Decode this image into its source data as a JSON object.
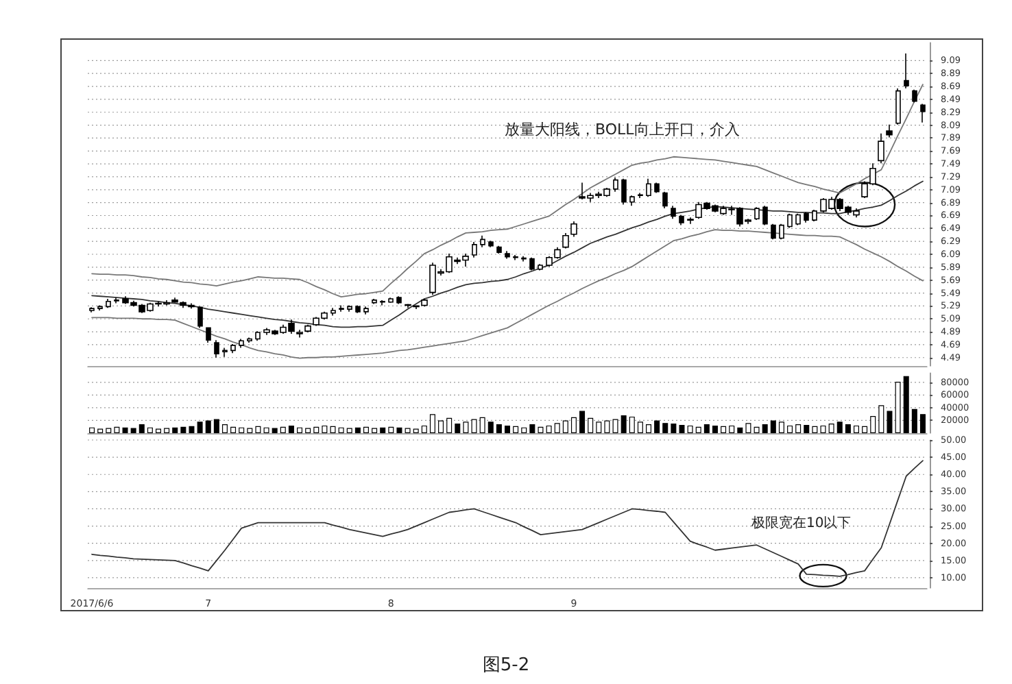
{
  "chart_data": [
    {
      "type": "candlestick",
      "tick_labels": "y",
      "grid": "y",
      "categories": [
        "2017/6/6",
        null,
        null,
        null,
        null,
        null,
        null,
        null,
        null,
        null,
        null,
        null,
        null,
        null,
        "7",
        null,
        null,
        null,
        null,
        null,
        null,
        null,
        null,
        null,
        null,
        null,
        null,
        null,
        null,
        null,
        null,
        null,
        null,
        null,
        null,
        null,
        "8",
        null,
        null,
        null,
        null,
        null,
        null,
        null,
        null,
        null,
        null,
        null,
        null,
        null,
        null,
        null,
        null,
        null,
        null,
        null,
        null,
        null,
        "9",
        null,
        null,
        null,
        null,
        null,
        null,
        null,
        null,
        null,
        null,
        null,
        null,
        null,
        null,
        null,
        null,
        null,
        null,
        null,
        null,
        null,
        null,
        null,
        null,
        null,
        null,
        null,
        null,
        null,
        null,
        null,
        null,
        null,
        null,
        null,
        null,
        null,
        null,
        null,
        null,
        null,
        null
      ],
      "ohlc": [
        [
          5.22,
          5.27,
          5.19,
          5.25
        ],
        [
          5.25,
          5.3,
          5.22,
          5.28
        ],
        [
          5.28,
          5.4,
          5.26,
          5.36
        ],
        [
          5.37,
          5.42,
          5.33,
          5.38
        ],
        [
          5.4,
          5.44,
          5.32,
          5.34
        ],
        [
          5.34,
          5.37,
          5.28,
          5.3
        ],
        [
          5.3,
          5.32,
          5.18,
          5.2
        ],
        [
          5.22,
          5.34,
          5.2,
          5.32
        ],
        [
          5.32,
          5.36,
          5.28,
          5.33
        ],
        [
          5.32,
          5.38,
          5.3,
          5.34
        ],
        [
          5.38,
          5.42,
          5.34,
          5.35
        ],
        [
          5.34,
          5.36,
          5.26,
          5.3
        ],
        [
          5.3,
          5.33,
          5.25,
          5.28
        ],
        [
          5.27,
          5.28,
          4.95,
          4.98
        ],
        [
          4.95,
          4.96,
          4.72,
          4.76
        ],
        [
          4.72,
          4.76,
          4.49,
          4.55
        ],
        [
          4.58,
          4.64,
          4.5,
          4.6
        ],
        [
          4.6,
          4.7,
          4.56,
          4.68
        ],
        [
          4.68,
          4.78,
          4.64,
          4.75
        ],
        [
          4.75,
          4.8,
          4.72,
          4.78
        ],
        [
          4.78,
          4.9,
          4.75,
          4.88
        ],
        [
          4.88,
          4.95,
          4.84,
          4.92
        ],
        [
          4.9,
          4.92,
          4.84,
          4.86
        ],
        [
          4.88,
          5.0,
          4.86,
          4.96
        ],
        [
          5.02,
          5.08,
          4.86,
          4.9
        ],
        [
          4.86,
          4.92,
          4.8,
          4.88
        ],
        [
          4.9,
          5.0,
          4.88,
          4.98
        ],
        [
          5.0,
          5.12,
          4.98,
          5.1
        ],
        [
          5.1,
          5.2,
          5.08,
          5.18
        ],
        [
          5.18,
          5.26,
          5.14,
          5.22
        ],
        [
          5.24,
          5.3,
          5.2,
          5.25
        ],
        [
          5.24,
          5.3,
          5.2,
          5.28
        ],
        [
          5.28,
          5.3,
          5.18,
          5.2
        ],
        [
          5.2,
          5.28,
          5.16,
          5.25
        ],
        [
          5.34,
          5.4,
          5.32,
          5.38
        ],
        [
          5.36,
          5.38,
          5.3,
          5.35
        ],
        [
          5.35,
          5.42,
          5.34,
          5.4
        ],
        [
          5.42,
          5.44,
          5.32,
          5.34
        ],
        [
          5.3,
          5.32,
          5.26,
          5.31
        ],
        [
          5.28,
          5.3,
          5.24,
          5.29
        ],
        [
          5.3,
          5.4,
          5.28,
          5.38
        ],
        [
          5.5,
          5.96,
          5.46,
          5.92
        ],
        [
          5.8,
          5.86,
          5.76,
          5.82
        ],
        [
          5.82,
          6.1,
          5.8,
          6.05
        ],
        [
          6.0,
          6.04,
          5.94,
          5.98
        ],
        [
          6.0,
          6.1,
          5.9,
          6.06
        ],
        [
          6.08,
          6.28,
          6.04,
          6.24
        ],
        [
          6.24,
          6.38,
          6.2,
          6.32
        ],
        [
          6.28,
          6.3,
          6.2,
          6.22
        ],
        [
          6.2,
          6.22,
          6.1,
          6.12
        ],
        [
          6.1,
          6.14,
          6.02,
          6.05
        ],
        [
          6.04,
          6.08,
          6.0,
          6.05
        ],
        [
          6.02,
          6.06,
          5.98,
          6.03
        ],
        [
          6.02,
          6.04,
          5.84,
          5.86
        ],
        [
          5.86,
          5.94,
          5.84,
          5.92
        ],
        [
          5.92,
          6.06,
          5.9,
          6.04
        ],
        [
          6.04,
          6.2,
          6.02,
          6.16
        ],
        [
          6.2,
          6.42,
          6.18,
          6.38
        ],
        [
          6.4,
          6.6,
          6.36,
          6.56
        ],
        [
          6.98,
          7.2,
          6.94,
          6.96
        ],
        [
          6.96,
          7.04,
          6.9,
          7.0
        ],
        [
          7.0,
          7.06,
          6.96,
          7.02
        ],
        [
          7.0,
          7.12,
          6.98,
          7.1
        ],
        [
          7.1,
          7.28,
          7.06,
          7.24
        ],
        [
          7.24,
          7.26,
          6.86,
          6.9
        ],
        [
          6.9,
          7.0,
          6.84,
          6.98
        ],
        [
          7.0,
          7.04,
          6.96,
          7.01
        ],
        [
          7.0,
          7.26,
          6.98,
          7.18
        ],
        [
          7.18,
          7.2,
          7.04,
          7.06
        ],
        [
          7.04,
          7.06,
          6.8,
          6.84
        ],
        [
          6.8,
          6.84,
          6.64,
          6.68
        ],
        [
          6.68,
          6.7,
          6.54,
          6.58
        ],
        [
          6.62,
          6.66,
          6.56,
          6.63
        ],
        [
          6.66,
          6.9,
          6.64,
          6.86
        ],
        [
          6.88,
          6.9,
          6.78,
          6.8
        ],
        [
          6.84,
          6.86,
          6.74,
          6.76
        ],
        [
          6.72,
          6.84,
          6.7,
          6.8
        ],
        [
          6.78,
          6.84,
          6.7,
          6.79
        ],
        [
          6.8,
          6.82,
          6.52,
          6.56
        ],
        [
          6.6,
          6.64,
          6.56,
          6.62
        ],
        [
          6.64,
          6.82,
          6.62,
          6.8
        ],
        [
          6.82,
          6.84,
          6.54,
          6.56
        ],
        [
          6.54,
          6.56,
          6.32,
          6.34
        ],
        [
          6.34,
          6.56,
          6.32,
          6.54
        ],
        [
          6.52,
          6.72,
          6.5,
          6.7
        ],
        [
          6.56,
          6.72,
          6.54,
          6.7
        ],
        [
          6.72,
          6.74,
          6.58,
          6.62
        ],
        [
          6.62,
          6.78,
          6.6,
          6.76
        ],
        [
          6.76,
          6.96,
          6.74,
          6.94
        ],
        [
          6.8,
          6.98,
          6.78,
          6.94
        ],
        [
          6.94,
          6.96,
          6.76,
          6.8
        ],
        [
          6.82,
          6.84,
          6.7,
          6.74
        ],
        [
          6.7,
          6.8,
          6.66,
          6.76
        ],
        [
          6.98,
          7.22,
          6.96,
          7.18
        ],
        [
          7.18,
          7.5,
          7.16,
          7.42
        ],
        [
          7.54,
          7.96,
          7.5,
          7.84
        ],
        [
          8.0,
          8.1,
          7.9,
          7.94
        ],
        [
          8.12,
          8.66,
          8.1,
          8.62
        ],
        [
          8.78,
          9.2,
          8.66,
          8.7
        ],
        [
          8.62,
          8.64,
          8.44,
          8.46
        ],
        [
          8.4,
          8.42,
          8.13,
          8.3
        ]
      ],
      "series": [
        {
          "type": "line",
          "color": "#777777",
          "values": [
            5.79,
            5.78,
            5.78,
            5.77,
            5.77,
            5.76,
            5.74,
            5.73,
            5.71,
            5.7,
            5.68,
            5.66,
            5.65,
            5.63,
            5.62,
            5.6,
            5.63,
            5.66,
            5.68,
            5.71,
            5.74,
            5.73,
            5.72,
            5.72,
            5.71,
            5.7,
            5.65,
            5.59,
            5.54,
            5.48,
            5.43,
            5.45,
            5.47,
            5.48,
            5.5,
            5.52,
            5.64,
            5.75,
            5.87,
            5.98,
            6.1,
            6.16,
            6.23,
            6.29,
            6.36,
            6.42,
            6.43,
            6.44,
            6.46,
            6.47,
            6.48,
            6.52,
            6.56,
            6.6,
            6.64,
            6.68,
            6.77,
            6.86,
            6.94,
            7.03,
            7.12,
            7.19,
            7.26,
            7.33,
            7.4,
            7.47,
            7.5,
            7.52,
            7.55,
            7.57,
            7.6,
            7.59,
            7.58,
            7.57,
            7.56,
            7.55,
            7.53,
            7.51,
            7.49,
            7.47,
            7.45,
            7.4,
            7.35,
            7.3,
            7.25,
            7.2,
            7.17,
            7.14,
            7.1,
            7.07,
            7.04,
            7.11,
            7.18,
            7.26,
            7.33,
            7.4,
            7.66,
            7.93,
            8.19,
            8.46,
            8.72
          ]
        },
        {
          "type": "line",
          "color": "#333333",
          "values": [
            5.45,
            5.44,
            5.43,
            5.42,
            5.41,
            5.4,
            5.39,
            5.37,
            5.36,
            5.34,
            5.33,
            5.31,
            5.29,
            5.27,
            5.24,
            5.22,
            5.2,
            5.18,
            5.16,
            5.14,
            5.12,
            5.1,
            5.08,
            5.07,
            5.05,
            5.03,
            5.02,
            5.0,
            4.99,
            4.97,
            4.96,
            4.96,
            4.97,
            4.97,
            4.98,
            4.99,
            5.07,
            5.15,
            5.24,
            5.32,
            5.4,
            5.44,
            5.49,
            5.53,
            5.58,
            5.62,
            5.64,
            5.65,
            5.67,
            5.68,
            5.7,
            5.74,
            5.79,
            5.83,
            5.88,
            5.92,
            5.99,
            6.06,
            6.12,
            6.19,
            6.26,
            6.31,
            6.36,
            6.4,
            6.45,
            6.5,
            6.54,
            6.59,
            6.63,
            6.68,
            6.72,
            6.74,
            6.76,
            6.79,
            6.81,
            6.83,
            6.82,
            6.81,
            6.8,
            6.79,
            6.78,
            6.77,
            6.76,
            6.76,
            6.75,
            6.74,
            6.74,
            6.73,
            6.73,
            6.72,
            6.72,
            6.75,
            6.77,
            6.8,
            6.82,
            6.85,
            6.92,
            7.0,
            7.07,
            7.15,
            7.22
          ]
        },
        {
          "type": "line",
          "color": "#777777",
          "values": [
            5.11,
            5.11,
            5.11,
            5.1,
            5.1,
            5.1,
            5.09,
            5.09,
            5.08,
            5.08,
            5.07,
            5.02,
            4.97,
            4.92,
            4.87,
            4.82,
            4.78,
            4.73,
            4.69,
            4.64,
            4.6,
            4.58,
            4.55,
            4.53,
            4.5,
            4.48,
            4.49,
            4.49,
            4.5,
            4.5,
            4.51,
            4.52,
            4.53,
            4.54,
            4.55,
            4.56,
            4.58,
            4.6,
            4.61,
            4.63,
            4.65,
            4.67,
            4.69,
            4.71,
            4.73,
            4.75,
            4.79,
            4.83,
            4.87,
            4.91,
            4.95,
            5.02,
            5.09,
            5.16,
            5.23,
            5.3,
            5.36,
            5.43,
            5.49,
            5.56,
            5.62,
            5.68,
            5.73,
            5.79,
            5.84,
            5.9,
            5.98,
            6.06,
            6.14,
            6.22,
            6.3,
            6.33,
            6.37,
            6.4,
            6.44,
            6.47,
            6.46,
            6.46,
            6.45,
            6.45,
            6.44,
            6.43,
            6.42,
            6.41,
            6.4,
            6.39,
            6.38,
            6.38,
            6.37,
            6.37,
            6.36,
            6.3,
            6.24,
            6.17,
            6.11,
            6.05,
            5.98,
            5.9,
            5.83,
            5.75,
            5.68
          ]
        }
      ],
      "ylim": [
        4.36,
        9.37
      ],
      "yticks": [
        4.49,
        4.69,
        4.89,
        5.09,
        5.29,
        5.49,
        5.69,
        5.89,
        6.09,
        6.29,
        6.49,
        6.69,
        6.89,
        7.09,
        7.29,
        7.49,
        7.69,
        7.89,
        8.09,
        8.29,
        8.49,
        8.69,
        8.89,
        9.09
      ],
      "annotations": [
        "放量大阳线，BOLL向上开口，介入"
      ]
    },
    {
      "type": "bar",
      "tick_labels": "y",
      "grid": "y",
      "categories": [
        "2017/6/6",
        null,
        null,
        null,
        null,
        null,
        null,
        null,
        null,
        null,
        null,
        null,
        null,
        null,
        "7",
        null,
        null,
        null,
        null,
        null,
        null,
        null,
        null,
        null,
        null,
        null,
        null,
        null,
        null,
        null,
        null,
        null,
        null,
        null,
        null,
        null,
        "8",
        null,
        null,
        null,
        null,
        null,
        null,
        null,
        null,
        null,
        null,
        null,
        null,
        null,
        null,
        null,
        null,
        null,
        null,
        null,
        null,
        null,
        "9",
        null,
        null,
        null,
        null,
        null,
        null,
        null,
        null,
        null,
        null,
        null,
        null,
        null,
        null,
        null,
        null,
        null,
        null,
        null,
        null,
        null,
        null,
        null,
        null,
        null,
        null,
        null,
        null,
        null,
        null,
        null,
        null,
        null,
        null,
        null,
        null,
        null,
        null,
        null,
        null,
        null,
        null
      ],
      "values": [
        9000,
        7000,
        8000,
        10000,
        9000,
        8000,
        14000,
        9000,
        7000,
        8000,
        9000,
        10000,
        11000,
        18000,
        20000,
        22000,
        14000,
        10000,
        9000,
        8000,
        11000,
        9000,
        8000,
        10000,
        12000,
        9000,
        8000,
        10000,
        12000,
        11000,
        9000,
        8000,
        9000,
        10000,
        8000,
        9000,
        10000,
        9000,
        8000,
        7000,
        12000,
        30000,
        20000,
        24000,
        15000,
        18000,
        22000,
        25000,
        18000,
        14000,
        12000,
        11000,
        9000,
        14000,
        10000,
        12000,
        16000,
        20000,
        25000,
        35000,
        24000,
        18000,
        20000,
        22000,
        28000,
        26000,
        18000,
        14000,
        20000,
        16000,
        15000,
        13000,
        12000,
        10000,
        14000,
        12000,
        11000,
        12000,
        9000,
        16000,
        10000,
        14000,
        20000,
        18000,
        12000,
        14000,
        13000,
        11000,
        12000,
        15000,
        18000,
        14000,
        12000,
        11000,
        27000,
        44000,
        35000,
        81000,
        90000,
        38000,
        30000
      ],
      "ylim": [
        0,
        95000
      ],
      "yticks": [
        20000,
        40000,
        60000,
        80000
      ]
    },
    {
      "type": "line",
      "grid": "y",
      "marker": "none",
      "color": "#333333",
      "categories": [
        "2017/6/6",
        null,
        null,
        null,
        null,
        null,
        null,
        null,
        null,
        null,
        null,
        null,
        null,
        null,
        "7",
        null,
        null,
        null,
        null,
        null,
        null,
        null,
        null,
        null,
        null,
        null,
        null,
        null,
        null,
        null,
        null,
        null,
        null,
        null,
        null,
        null,
        "8",
        null,
        null,
        null,
        null,
        null,
        null,
        null,
        null,
        null,
        null,
        null,
        null,
        null,
        null,
        null,
        null,
        null,
        null,
        null,
        null,
        null,
        "9",
        null,
        null,
        null,
        null,
        null,
        null,
        null,
        null,
        null,
        null,
        null,
        null,
        null,
        null,
        null,
        null,
        null,
        null,
        null,
        null,
        null,
        null,
        null,
        null,
        null,
        null,
        null,
        null,
        null,
        null,
        null,
        null,
        null,
        null,
        null,
        null,
        null,
        null,
        null,
        null,
        null,
        null
      ],
      "values": [
        16.8,
        16.5,
        16.3,
        16.0,
        15.8,
        15.5,
        15.4,
        15.3,
        15.2,
        15.1,
        15.0,
        14.3,
        13.5,
        12.8,
        12.0,
        15.0,
        18.0,
        21.2,
        24.4,
        25.2,
        26.0,
        26.0,
        26.0,
        26.0,
        26.0,
        26.0,
        26.0,
        26.0,
        26.0,
        25.3,
        24.7,
        24.0,
        23.5,
        23.0,
        22.5,
        22.0,
        22.7,
        23.3,
        24.0,
        25.0,
        26.0,
        27.0,
        28.0,
        29.0,
        29.3,
        29.7,
        30.0,
        29.2,
        28.4,
        27.6,
        26.8,
        26.0,
        24.8,
        23.7,
        22.5,
        22.8,
        23.1,
        23.4,
        23.7,
        24.0,
        25.0,
        26.0,
        27.0,
        28.0,
        29.0,
        30.0,
        29.8,
        29.5,
        29.3,
        29.0,
        26.2,
        23.4,
        20.6,
        19.7,
        18.9,
        18.0,
        18.3,
        18.6,
        18.9,
        19.2,
        19.5,
        18.4,
        17.3,
        16.2,
        15.1,
        14.0,
        11.0,
        10.9,
        10.7,
        10.6,
        10.4,
        10.9,
        11.5,
        12.0,
        15.4,
        18.7,
        25.6,
        32.6,
        39.5,
        41.8,
        44.0
      ],
      "ylim": [
        7,
        50
      ],
      "yticks": [
        {
          "value": 10,
          "label": "10.00"
        },
        {
          "value": 15,
          "label": "15.00"
        },
        {
          "value": 20,
          "label": "20.00"
        },
        {
          "value": 25,
          "label": "25.00"
        },
        {
          "value": 30,
          "label": "30.00"
        },
        {
          "value": 35,
          "label": "35.00"
        },
        {
          "value": 40,
          "label": "40.00"
        },
        {
          "value": 45,
          "label": "45.00"
        },
        {
          "value": 50,
          "label": "50.00"
        }
      ],
      "annotations": [
        "极限宽在10以下",
        "图5-2"
      ]
    }
  ]
}
